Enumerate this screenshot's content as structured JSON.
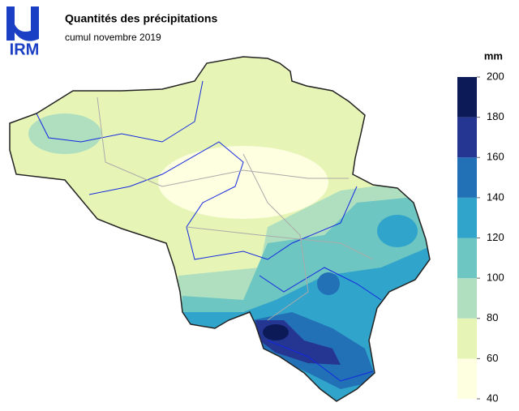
{
  "logo": "IRM",
  "title": "Quantités des précipitations",
  "subtitle": "cumul novembre 2019",
  "legend": {
    "unit": "mm",
    "ticks": [
      40,
      60,
      80,
      100,
      120,
      140,
      160,
      180,
      200
    ],
    "colors": [
      "#fefee0",
      "#e6f5b6",
      "#b0dfc0",
      "#6dc6c1",
      "#30a4cb",
      "#2270b5",
      "#253592",
      "#0c1b58"
    ]
  }
}
